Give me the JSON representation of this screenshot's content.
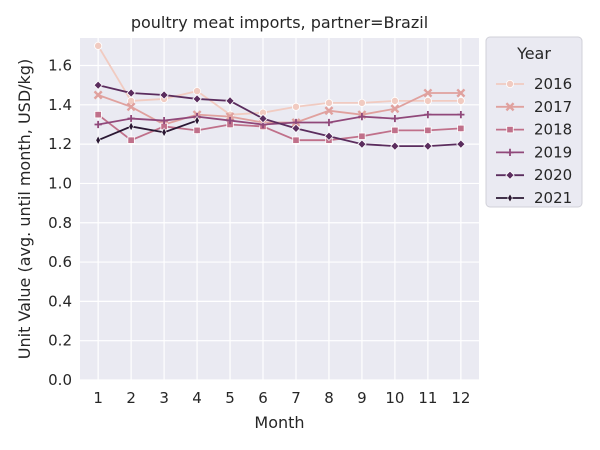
{
  "chart_data": {
    "type": "line",
    "title": "poultry meat imports, partner=Brazil",
    "xlabel": "Month",
    "ylabel": "Unit Value (avg. until month, USD/kg)",
    "x": [
      1,
      2,
      3,
      4,
      5,
      6,
      7,
      8,
      9,
      10,
      11,
      12
    ],
    "ylim": [
      0,
      1.74
    ],
    "yticks": [
      0.0,
      0.2,
      0.4,
      0.6,
      0.8,
      1.0,
      1.2,
      1.4,
      1.6
    ],
    "ytick_labels": [
      "0.0",
      "0.2",
      "0.4",
      "0.6",
      "0.8",
      "1.0",
      "1.2",
      "1.4",
      "1.6"
    ],
    "grid": true,
    "legend": {
      "title": "Year",
      "placement": "outside-right"
    },
    "series": [
      {
        "name": "2016",
        "color": "#f1cbc1",
        "marker": "circle",
        "values": [
          1.7,
          1.42,
          1.43,
          1.47,
          1.35,
          1.36,
          1.39,
          1.41,
          1.41,
          1.42,
          1.42,
          1.42
        ]
      },
      {
        "name": "2017",
        "color": "#e0a19e",
        "marker": "x",
        "values": [
          1.45,
          1.39,
          1.3,
          1.35,
          1.34,
          1.31,
          1.31,
          1.37,
          1.35,
          1.38,
          1.46,
          1.46
        ]
      },
      {
        "name": "2018",
        "color": "#c0708a",
        "marker": "square",
        "values": [
          1.35,
          1.22,
          1.29,
          1.27,
          1.3,
          1.29,
          1.22,
          1.22,
          1.24,
          1.27,
          1.27,
          1.28
        ]
      },
      {
        "name": "2019",
        "color": "#90487a",
        "marker": "plus",
        "values": [
          1.3,
          1.33,
          1.32,
          1.34,
          1.32,
          1.3,
          1.31,
          1.31,
          1.34,
          1.33,
          1.35,
          1.35
        ]
      },
      {
        "name": "2020",
        "color": "#5b2d5e",
        "marker": "diamond",
        "values": [
          1.5,
          1.46,
          1.45,
          1.43,
          1.42,
          1.33,
          1.28,
          1.24,
          1.2,
          1.19,
          1.19,
          1.2
        ]
      },
      {
        "name": "2021",
        "color": "#2a1733",
        "marker": "thin-diamond",
        "values": [
          1.22,
          1.29,
          1.26,
          1.32,
          null,
          null,
          null,
          null,
          null,
          null,
          null,
          null
        ]
      }
    ]
  }
}
